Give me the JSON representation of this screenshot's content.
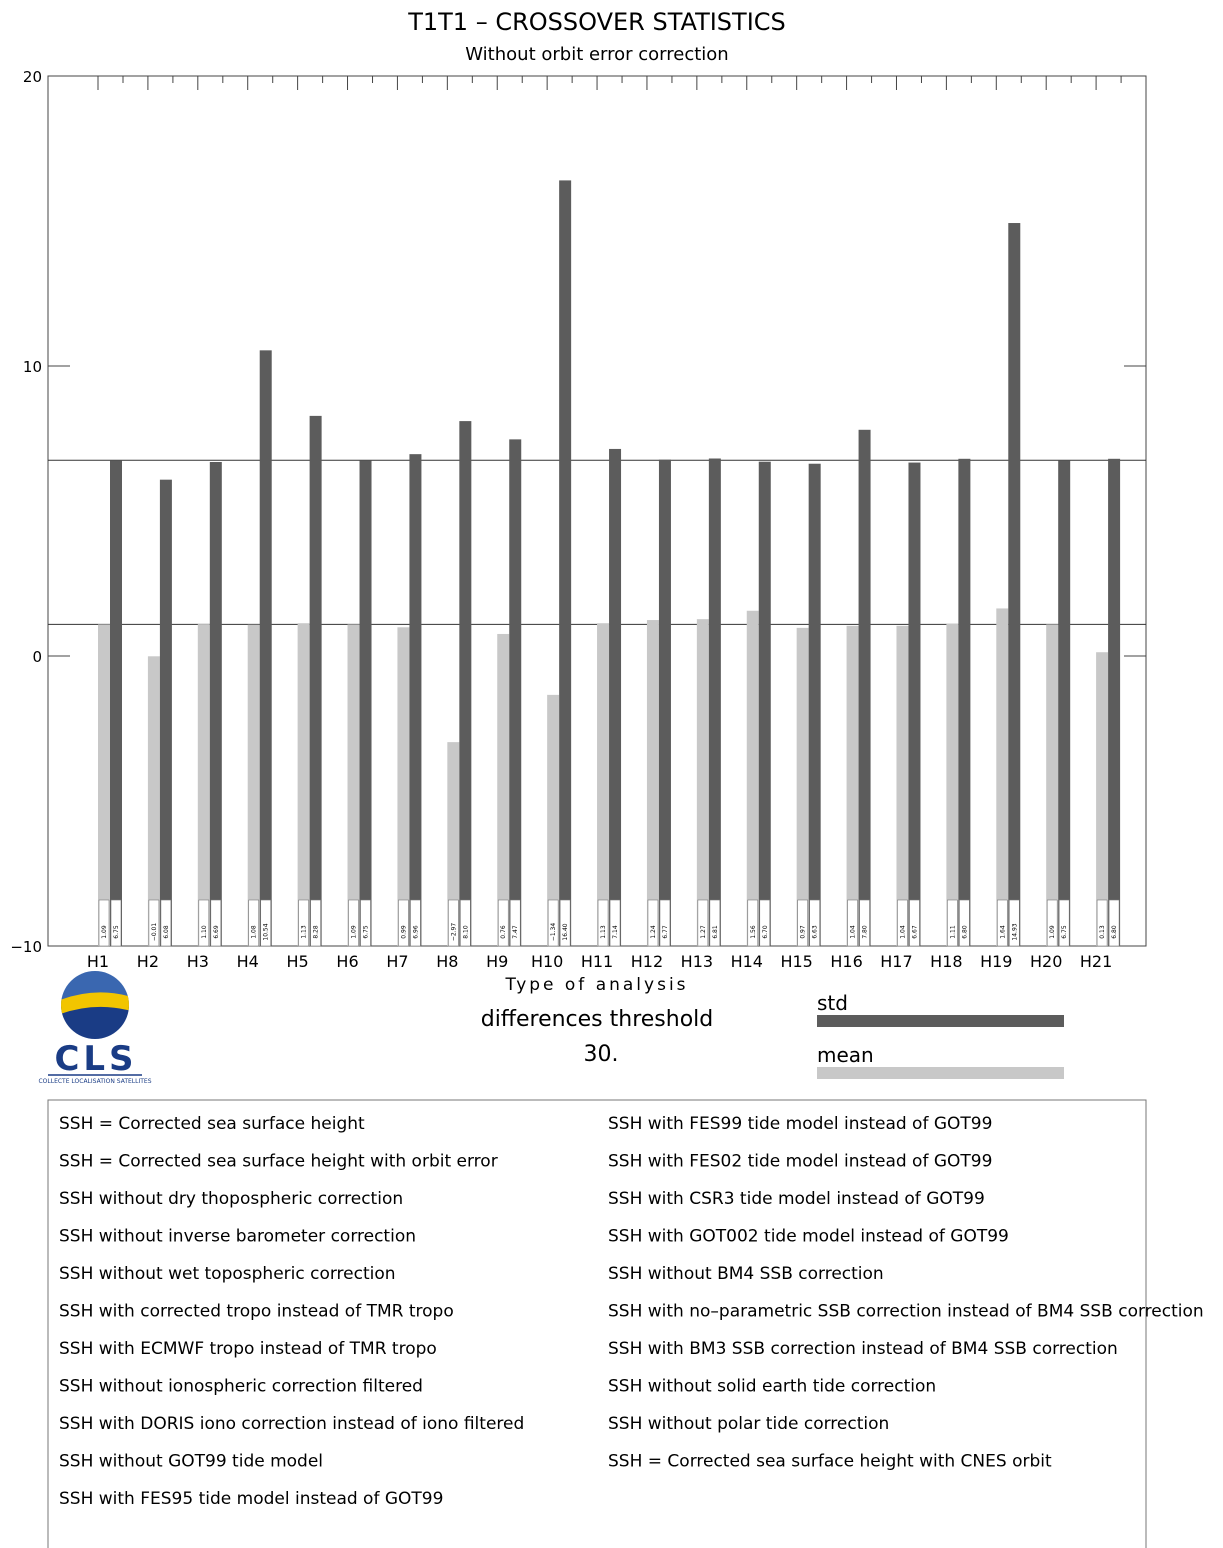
{
  "chart_data": {
    "type": "bar",
    "title": "T1T1 – CROSSOVER STATISTICS",
    "subtitle": "Without orbit error correction",
    "xlabel": "Type of analysis",
    "ylabel": "",
    "ylim": [
      -10,
      20
    ],
    "yticks": [
      "-10",
      "0",
      "10",
      "20"
    ],
    "categories": [
      "H1",
      "H2",
      "H3",
      "H4",
      "H5",
      "H6",
      "H7",
      "H8",
      "H9",
      "H10",
      "H11",
      "H12",
      "H13",
      "H14",
      "H15",
      "H16",
      "H17",
      "H18",
      "H19",
      "H20",
      "H21"
    ],
    "series": [
      {
        "name": "mean",
        "color": "#c8c8c8",
        "values": [
          1.09,
          -0.01,
          1.1,
          1.08,
          1.13,
          1.09,
          0.99,
          -2.97,
          0.76,
          -1.34,
          1.13,
          1.24,
          1.27,
          1.56,
          0.97,
          1.04,
          1.04,
          1.11,
          1.64,
          1.09,
          0.13
        ],
        "labels": [
          "1.09",
          "−0.01",
          "1.10",
          "1.08",
          "1.13",
          "1.09",
          "0.99",
          "−2.97",
          "0.76",
          "−1.34",
          "1.13",
          "1.24",
          "1.27",
          "1.56",
          "0.97",
          "1.04",
          "1.04",
          "1.11",
          "1.64",
          "1.09",
          "0.13"
        ]
      },
      {
        "name": "std",
        "color": "#5c5c5c",
        "values": [
          6.75,
          6.08,
          6.69,
          10.54,
          8.28,
          6.75,
          6.96,
          8.1,
          7.47,
          16.4,
          7.14,
          6.77,
          6.81,
          6.7,
          6.63,
          7.8,
          6.67,
          6.8,
          14.93,
          6.75,
          6.8
        ],
        "labels": [
          "6.75",
          "6.08",
          "6.69",
          "10.54",
          "8.28",
          "6.75",
          "6.96",
          "8.10",
          "7.47",
          "16.40",
          "7.14",
          "6.77",
          "6.81",
          "6.70",
          "6.63",
          "7.80",
          "6.67",
          "6.80",
          "14.93",
          "6.75",
          "6.80"
        ]
      }
    ],
    "reference_lines": [
      6.75,
      1.09
    ],
    "grid": false,
    "legend_placement": "bottom-right"
  },
  "threshold": {
    "label": "differences threshold",
    "value": "30."
  },
  "logo": {
    "name": "CLS",
    "subtitle": "COLLECTE LOCALISATION SATELLITES",
    "colors": {
      "top": "#3a67b0",
      "band": "#f2c500",
      "bottom": "#1a3c85"
    }
  },
  "legend_box": {
    "left": [
      "SSH = Corrected sea surface height",
      "SSH = Corrected sea surface height with orbit error",
      "SSH without dry thopospheric correction",
      "SSH without inverse barometer correction",
      "SSH without wet topospheric correction",
      "SSH with corrected tropo instead of TMR tropo",
      "SSH with ECMWF tropo instead of TMR tropo",
      "SSH without ionospheric correction filtered",
      "SSH with DORIS iono correction instead of iono filtered",
      "SSH without GOT99 tide model",
      "SSH with FES95 tide model instead of GOT99"
    ],
    "right": [
      "SSH with FES99 tide model instead of GOT99",
      "SSH with FES02 tide model instead of GOT99",
      "SSH with CSR3 tide model instead of GOT99",
      "SSH with GOT002 tide model instead of GOT99",
      "SSH without BM4 SSB correction",
      "SSH with no–parametric SSB correction instead of BM4 SSB correction",
      "SSH with BM3 SSB correction instead of BM4 SSB correction",
      "SSH without solid earth tide correction",
      "SSH without polar tide correction",
      "SSH = Corrected sea surface height with CNES orbit"
    ]
  }
}
